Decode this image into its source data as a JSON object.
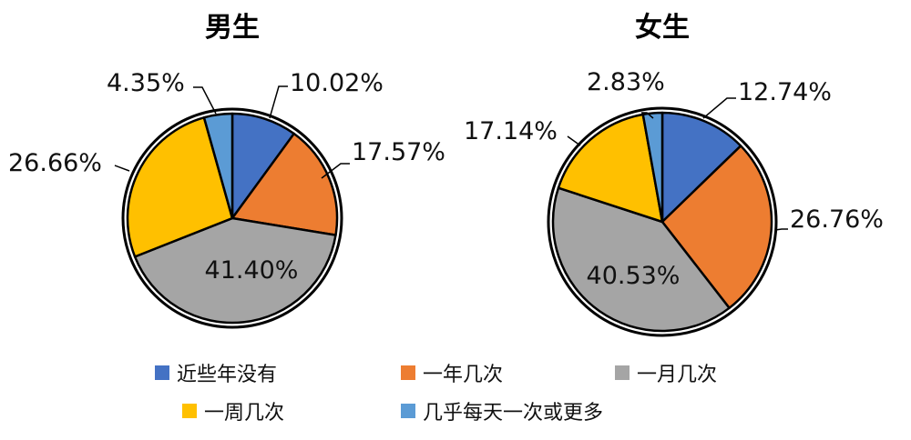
{
  "chart_data": [
    {
      "type": "pie",
      "title": "男生",
      "categories": [
        "近些年没有",
        "一年几次",
        "一月几次",
        "一周几次",
        "几乎每天一次或更多"
      ],
      "values": [
        10.02,
        17.57,
        41.4,
        26.66,
        4.35
      ],
      "labels": [
        "10.02%",
        "17.57%",
        "41.40%",
        "26.66%",
        "4.35%"
      ]
    },
    {
      "type": "pie",
      "title": "女生",
      "categories": [
        "近些年没有",
        "一年几次",
        "一月几次",
        "一周几次",
        "几乎每天一次或更多"
      ],
      "values": [
        12.74,
        26.76,
        40.53,
        17.14,
        2.83
      ],
      "labels": [
        "12.74%",
        "26.76%",
        "40.53%",
        "17.14%",
        "2.83%"
      ]
    }
  ],
  "legend": {
    "placement": "bottom",
    "items": [
      {
        "label": "近些年没有",
        "color": "#4472C4"
      },
      {
        "label": "一年几次",
        "color": "#ED7D31"
      },
      {
        "label": "一月几次",
        "color": "#A5A5A5"
      },
      {
        "label": "一周几次",
        "color": "#FFC000"
      },
      {
        "label": "几乎每天一次或更多",
        "color": "#5B9BD5"
      }
    ]
  }
}
